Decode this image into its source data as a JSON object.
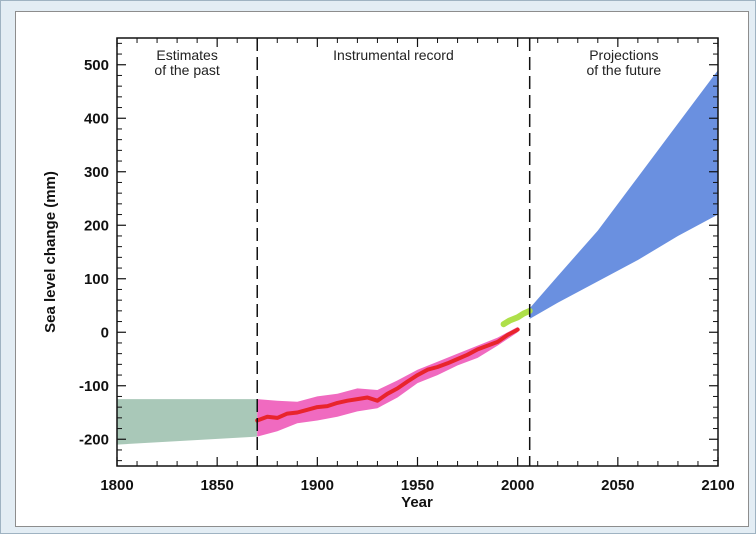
{
  "chart_data": {
    "type": "area",
    "xlabel": "Year",
    "ylabel": "Sea level change (mm)",
    "xlim": [
      1800,
      2100
    ],
    "ylim": [
      -250,
      550
    ],
    "x_ticks": [
      1800,
      1850,
      1900,
      1950,
      2000,
      2050,
      2100
    ],
    "y_ticks": [
      -200,
      -100,
      0,
      100,
      200,
      300,
      400,
      500
    ],
    "period_labels": [
      {
        "lines": [
          "Estimates",
          "of the past"
        ],
        "x_center": 1835
      },
      {
        "lines": [
          "Instrumental record"
        ],
        "x_center": 1938
      },
      {
        "lines": [
          "Projections",
          "of the future"
        ],
        "x_center": 2053
      }
    ],
    "dividers": [
      1870,
      2006
    ],
    "past_band": {
      "color": "#a9c8b8",
      "x": [
        1800,
        1870
      ],
      "upper": [
        -125,
        -125
      ],
      "lower": [
        -210,
        -195
      ]
    },
    "instrumental_band": {
      "color": "#f06ac0",
      "x": [
        1870,
        1880,
        1890,
        1900,
        1910,
        1920,
        1930,
        1940,
        1950,
        1960,
        1970,
        1980,
        1990,
        2000
      ],
      "upper": [
        -125,
        -128,
        -130,
        -120,
        -115,
        -105,
        -108,
        -90,
        -70,
        -55,
        -40,
        -25,
        -10,
        10
      ],
      "lower": [
        -195,
        -185,
        -170,
        -165,
        -158,
        -148,
        -142,
        -122,
        -95,
        -80,
        -62,
        -48,
        -25,
        0
      ]
    },
    "series": [
      {
        "color": "#e8242c",
        "x": [
          1870,
          1875,
          1880,
          1885,
          1890,
          1895,
          1900,
          1905,
          1910,
          1915,
          1920,
          1925,
          1930,
          1935,
          1940,
          1945,
          1950,
          1955,
          1960,
          1965,
          1970,
          1975,
          1980,
          1985,
          1990,
          1995,
          2000
        ],
        "values": [
          -165,
          -158,
          -160,
          -152,
          -150,
          -145,
          -140,
          -138,
          -132,
          -128,
          -125,
          -122,
          -128,
          -115,
          -105,
          -92,
          -80,
          -70,
          -65,
          -58,
          -50,
          -42,
          -32,
          -25,
          -18,
          -5,
          5
        ]
      },
      {
        "color": "#aee04a",
        "x": [
          1993,
          1996,
          2000,
          2003,
          2006
        ],
        "values": [
          15,
          22,
          28,
          35,
          40
        ]
      }
    ],
    "projection_band": {
      "color": "#6a90e0",
      "x": [
        2006,
        2020,
        2040,
        2060,
        2080,
        2100
      ],
      "upper": [
        45,
        105,
        190,
        290,
        390,
        490
      ],
      "lower": [
        25,
        55,
        95,
        135,
        180,
        220
      ]
    }
  }
}
